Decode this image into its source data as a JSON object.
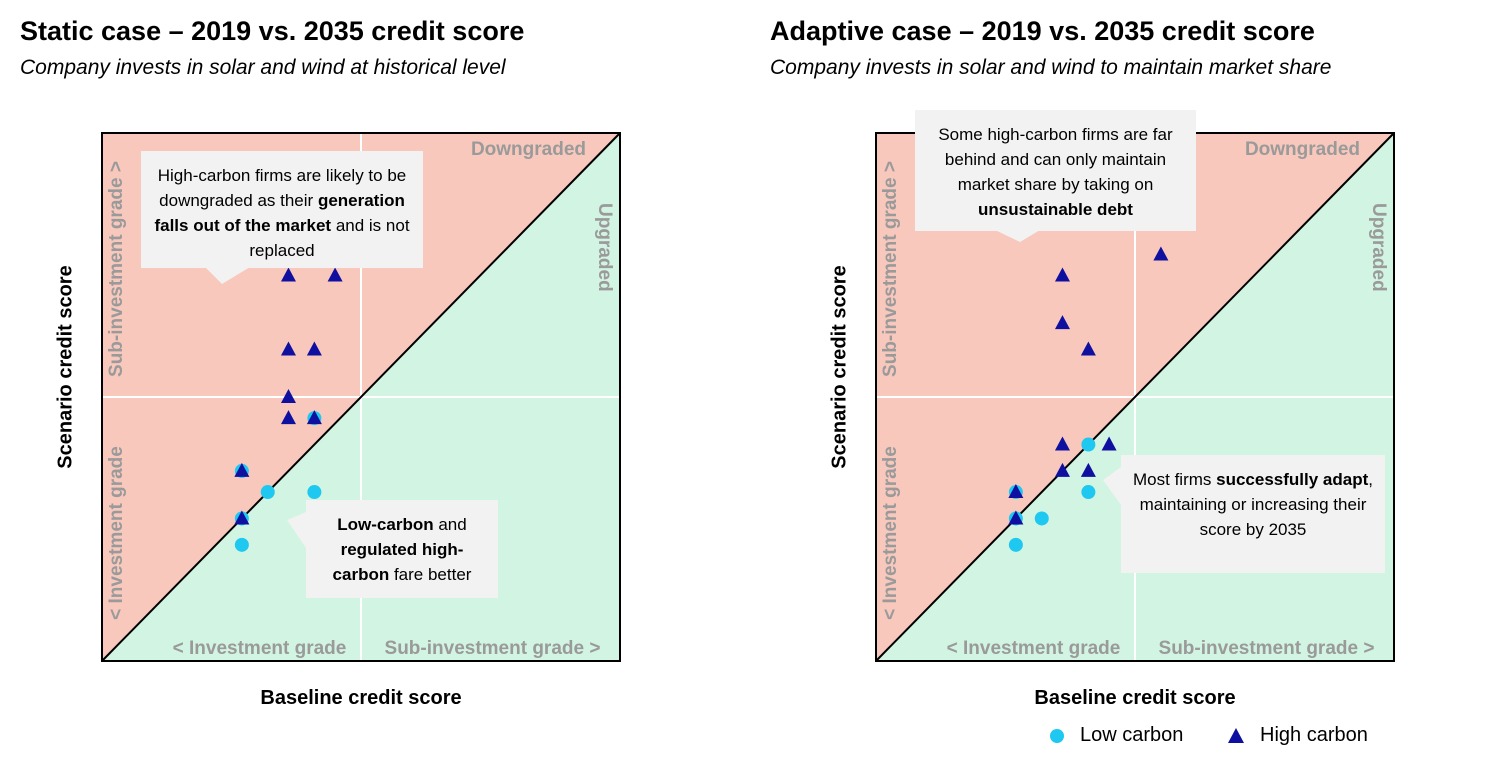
{
  "left": {
    "title": "Static case – 2019 vs. 2035 credit score",
    "subtitle": "Company invests in solar and wind at historical level",
    "callout_top": {
      "pre": "High-carbon firms are likely to be downgraded as their ",
      "bold": "generation falls out of the market",
      "post": " and is not replaced"
    },
    "callout_bottom": {
      "bold1": "Low-carbon",
      "mid": " and ",
      "bold2": "regulated high-carbon",
      "post": " fare better"
    }
  },
  "right": {
    "title": "Adaptive case – 2019 vs. 2035 credit score",
    "subtitle": "Company invests in solar and wind to maintain market share",
    "callout_top": {
      "pre": "Some high-carbon firms are far behind and can only maintain market share by taking on ",
      "bold": "unsustainable debt",
      "post": ""
    },
    "callout_bottom": {
      "pre": "Most firms ",
      "bold": "successfully adapt",
      "post": ", maintaining or increasing their score by 2035"
    }
  },
  "legend": {
    "low": "Low carbon",
    "high": "High carbon"
  },
  "colors": {
    "downgraded": "#f8c8bc",
    "upgraded": "#d2f4e2",
    "low_carbon": "#1ec8f0",
    "high_carbon": "#1010a0"
  },
  "chart_data": [
    {
      "type": "scatter",
      "title": "Static case – 2019 vs. 2035 credit score",
      "xlabel": "Baseline credit score",
      "ylabel": "Scenario credit score",
      "xlim": [
        0,
        10
      ],
      "ylim": [
        0,
        10
      ],
      "regions": {
        "upper": "Downgraded",
        "lower": "Upgraded"
      },
      "x_groups": [
        "< Investment grade",
        "Sub-investment grade >"
      ],
      "y_groups": [
        "< Investment grade",
        "Sub-investment grade >"
      ],
      "series": [
        {
          "name": "Low carbon",
          "marker": "circle",
          "points": [
            [
              2.7,
              3.6
            ],
            [
              3.2,
              3.2
            ],
            [
              4.1,
              3.2
            ],
            [
              2.7,
              2.7
            ],
            [
              2.7,
              2.2
            ],
            [
              4.1,
              4.6
            ]
          ]
        },
        {
          "name": "High carbon",
          "marker": "triangle",
          "points": [
            [
              3.6,
              7.3
            ],
            [
              4.5,
              7.3
            ],
            [
              3.6,
              5.9
            ],
            [
              4.1,
              5.9
            ],
            [
              3.6,
              5.0
            ],
            [
              3.6,
              4.6
            ],
            [
              4.1,
              4.6
            ],
            [
              2.7,
              3.6
            ],
            [
              2.7,
              2.7
            ]
          ]
        }
      ]
    },
    {
      "type": "scatter",
      "title": "Adaptive case – 2019 vs. 2035 credit score",
      "xlabel": "Baseline credit score",
      "ylabel": "Scenario credit score",
      "xlim": [
        0,
        10
      ],
      "ylim": [
        0,
        10
      ],
      "regions": {
        "upper": "Downgraded",
        "lower": "Upgraded"
      },
      "x_groups": [
        "< Investment grade",
        "Sub-investment grade >"
      ],
      "y_groups": [
        "< Investment grade",
        "Sub-investment grade >"
      ],
      "series": [
        {
          "name": "Low carbon",
          "marker": "circle",
          "points": [
            [
              4.1,
              4.1
            ],
            [
              4.1,
              3.2
            ],
            [
              2.7,
              3.2
            ],
            [
              2.7,
              2.7
            ],
            [
              3.2,
              2.7
            ],
            [
              2.7,
              2.2
            ]
          ]
        },
        {
          "name": "High carbon",
          "marker": "triangle",
          "points": [
            [
              5.5,
              7.7
            ],
            [
              3.6,
              7.3
            ],
            [
              3.6,
              6.4
            ],
            [
              4.1,
              5.9
            ],
            [
              3.6,
              4.1
            ],
            [
              4.5,
              4.1
            ],
            [
              3.6,
              3.6
            ],
            [
              4.1,
              3.6
            ],
            [
              2.7,
              3.2
            ],
            [
              2.7,
              2.7
            ]
          ]
        }
      ]
    }
  ]
}
